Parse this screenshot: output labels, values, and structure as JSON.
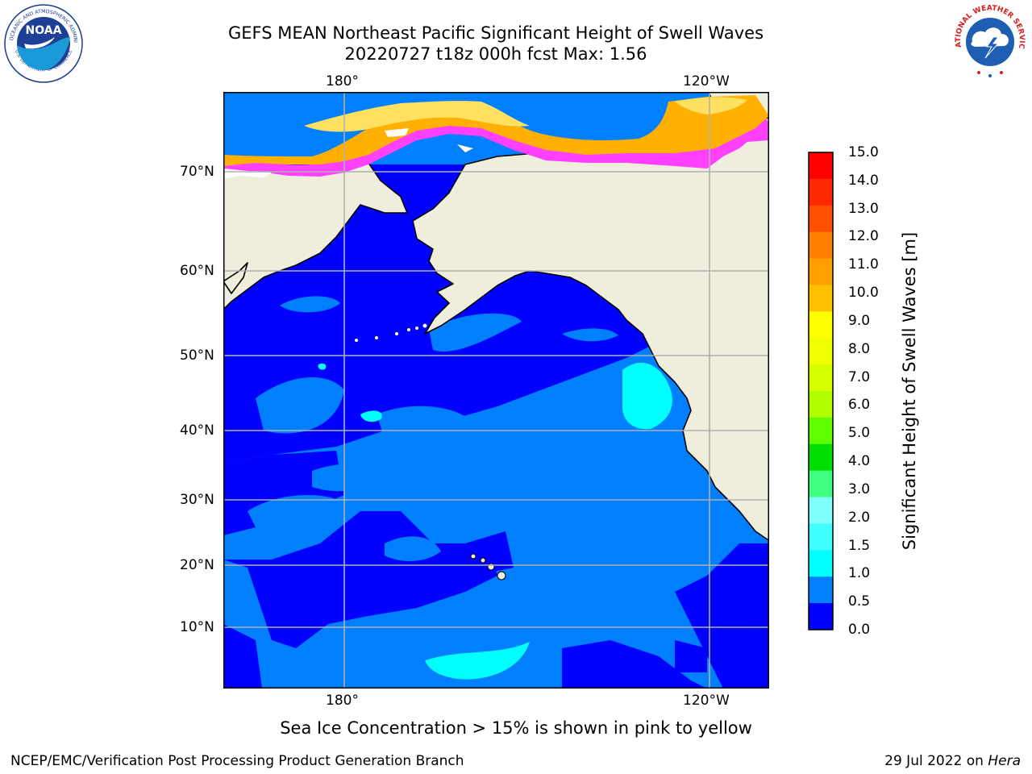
{
  "header": {
    "title_line1": "GEFS MEAN Northeast Pacific Significant Height of Swell Waves",
    "title_line2": "20220727 t18z 000h fcst   Max: 1.56"
  },
  "logos": {
    "noaa_text": "NOAA",
    "noaa_ring": "NATIONAL OCEANIC AND ATMOSPHERIC ADMINISTRATION",
    "noaa_ring_bottom": "U.S. DEPARTMENT OF COMMERCE",
    "nws_ring": "NATIONAL WEATHER SERVICE"
  },
  "map": {
    "lon_top": [
      "180°",
      "120°W"
    ],
    "lon_bottom": [
      "180°",
      "120°W"
    ],
    "lat_labels": [
      "70°N",
      "60°N",
      "50°N",
      "40°N",
      "30°N",
      "20°N",
      "10°N"
    ],
    "colors": {
      "ocean_0_05": "#0000ff",
      "ocean_05_10": "#0080ff",
      "ocean_10_15": "#00ffff",
      "land": "#efeedc",
      "gridline": "#b0b0b0",
      "ice_pink": "#ff40ff",
      "ice_orange": "#ffb000",
      "ice_yellow": "#ffe060"
    }
  },
  "colorbar": {
    "label": "Significant Height of Swell Waves [m]",
    "ticks": [
      "15.0",
      "14.0",
      "13.0",
      "12.0",
      "11.0",
      "10.0",
      "9.0",
      "8.0",
      "7.0",
      "6.0",
      "5.0",
      "4.0",
      "3.0",
      "2.0",
      "1.5",
      "1.0",
      "0.5",
      "0.0"
    ],
    "colors_top_to_bottom": [
      "#ff0000",
      "#ff2800",
      "#ff5000",
      "#ff8000",
      "#ffa000",
      "#ffc000",
      "#ffff00",
      "#f0ff00",
      "#d8ff00",
      "#b0ff00",
      "#60ff00",
      "#00e000",
      "#40ff80",
      "#80ffff",
      "#40ffff",
      "#00ffff",
      "#0080ff",
      "#0000ff"
    ]
  },
  "caption": "Sea Ice Concentration > 15% is shown in pink to yellow",
  "footer": {
    "left": "NCEP/EMC/Verification Post Processing Product Generation Branch",
    "right_prefix": "29 Jul 2022 on ",
    "right_host": "Hera"
  }
}
